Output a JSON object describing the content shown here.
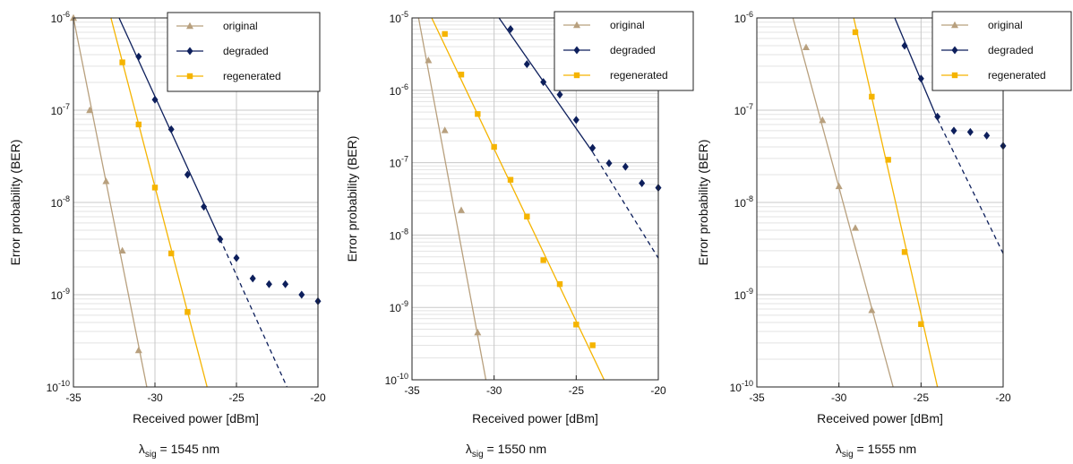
{
  "colors": {
    "original": "#b8a07e",
    "degraded": "#0d1f5c",
    "regenerated": "#f5b400",
    "grid_major": "#c8c8c8",
    "grid_minor": "#e3e3e3",
    "axis": "#222222"
  },
  "chart_data": [
    {
      "type": "line",
      "yscale": "log",
      "xlim": [
        -35,
        -20
      ],
      "ylim": [
        1e-10,
        1e-06
      ],
      "xticks": [
        -35,
        -30,
        -25,
        -20
      ],
      "xtick_labels": [
        "-35",
        "-30",
        "-25",
        "-20"
      ],
      "ydecades": [
        -10,
        -9,
        -8,
        -7,
        -6
      ],
      "xlabel": "Received power [dBm]",
      "ylabel": "Error probability (BER)",
      "caption": "λsig = 1545 nm",
      "caption_parts": {
        "symbol": "λ",
        "sub": "sig",
        "rest": " = 1545 nm"
      },
      "legend": {
        "position": "top-right",
        "entries": [
          "original",
          "degraded",
          "regenerated"
        ]
      },
      "series": [
        {
          "name": "original",
          "marker": "triangle",
          "points": [
            [
              -35,
              1e-06
            ],
            [
              -34,
              1e-07
            ],
            [
              -33,
              1.7e-08
            ],
            [
              -32,
              3e-09
            ],
            [
              -31,
              2.5e-10
            ]
          ],
          "fit": [
            [
              -35,
              1e-06
            ],
            [
              -30.5,
              1e-10
            ]
          ]
        },
        {
          "name": "degraded",
          "marker": "diamond",
          "points": [
            [
              -31,
              3.8e-07
            ],
            [
              -30,
              1.3e-07
            ],
            [
              -29,
              6.2e-08
            ],
            [
              -28,
              2e-08
            ],
            [
              -27,
              9e-09
            ],
            [
              -26,
              4e-09
            ],
            [
              -25,
              2.5e-09
            ],
            [
              -24,
              1.5e-09
            ],
            [
              -23,
              1.3e-09
            ],
            [
              -22,
              1.3e-09
            ],
            [
              -21,
              1e-09
            ],
            [
              -20,
              8.5e-10
            ]
          ],
          "fit": [
            [
              -32.2,
              1e-06
            ],
            [
              -26,
              4e-09
            ]
          ],
          "fit_dashed": [
            [
              -26,
              4e-09
            ],
            [
              -21.9,
              1e-10
            ]
          ]
        },
        {
          "name": "regenerated",
          "marker": "square",
          "points": [
            [
              -32,
              3.3e-07
            ],
            [
              -31,
              7e-08
            ],
            [
              -30,
              1.45e-08
            ],
            [
              -29,
              2.8e-09
            ],
            [
              -28,
              6.5e-10
            ]
          ],
          "fit": [
            [
              -32.7,
              1e-06
            ],
            [
              -26.8,
              1e-10
            ]
          ]
        }
      ]
    },
    {
      "type": "line",
      "yscale": "log",
      "xlim": [
        -35,
        -20
      ],
      "ylim": [
        1e-10,
        1e-05
      ],
      "xticks": [
        -35,
        -30,
        -25,
        -20
      ],
      "xtick_labels": [
        "-35",
        "-30",
        "-25",
        "-20"
      ],
      "ydecades": [
        -10,
        -9,
        -8,
        -7,
        -6,
        -5
      ],
      "xlabel": "Received power [dBm]",
      "ylabel": "Error probability (BER)",
      "caption": "λsig = 1550 nm",
      "caption_parts": {
        "symbol": "λ",
        "sub": "sig",
        "rest": " = 1550 nm"
      },
      "legend": {
        "position": "top-right",
        "entries": [
          "original",
          "degraded",
          "regenerated"
        ]
      },
      "series": [
        {
          "name": "original",
          "marker": "triangle",
          "points": [
            [
              -34,
              2.6e-06
            ],
            [
              -33,
              2.8e-07
            ],
            [
              -32,
              2.2e-08
            ],
            [
              -31,
              4.5e-10
            ]
          ],
          "fit": [
            [
              -34.6,
              1e-05
            ],
            [
              -30.5,
              1e-10
            ]
          ]
        },
        {
          "name": "degraded",
          "marker": "diamond",
          "points": [
            [
              -29,
              7e-06
            ],
            [
              -28,
              2.3e-06
            ],
            [
              -27,
              1.3e-06
            ],
            [
              -26,
              8.7e-07
            ],
            [
              -25,
              3.9e-07
            ],
            [
              -24,
              1.6e-07
            ],
            [
              -23,
              9.8e-08
            ],
            [
              -22,
              8.8e-08
            ],
            [
              -21,
              5.2e-08
            ],
            [
              -20,
              4.5e-08
            ]
          ],
          "fit": [
            [
              -29.7,
              1e-05
            ],
            [
              -24,
              1.4e-07
            ]
          ],
          "fit_dashed": [
            [
              -24,
              1.4e-07
            ],
            [
              -20,
              4.8e-09
            ]
          ]
        },
        {
          "name": "regenerated",
          "marker": "square",
          "points": [
            [
              -33,
              6e-06
            ],
            [
              -32,
              1.65e-06
            ],
            [
              -31,
              4.7e-07
            ],
            [
              -30,
              1.65e-07
            ],
            [
              -29,
              5.8e-08
            ],
            [
              -28,
              1.8e-08
            ],
            [
              -27,
              4.5e-09
            ],
            [
              -26,
              2.1e-09
            ],
            [
              -25,
              5.8e-10
            ],
            [
              -24,
              3e-10
            ]
          ],
          "fit": [
            [
              -33.8,
              1e-05
            ],
            [
              -23.3,
              1e-10
            ]
          ]
        }
      ]
    },
    {
      "type": "line",
      "yscale": "log",
      "xlim": [
        -35,
        -20
      ],
      "ylim": [
        1e-10,
        1e-06
      ],
      "xticks": [
        -35,
        -30,
        -25,
        -20
      ],
      "xtick_labels": [
        "-35",
        "-30",
        "-25",
        "-20"
      ],
      "ydecades": [
        -10,
        -9,
        -8,
        -7,
        -6
      ],
      "xlabel": "Received power [dBm]",
      "ylabel": "Error probability (BER)",
      "caption": "λsig = 1555 nm",
      "caption_parts": {
        "symbol": "λ",
        "sub": "sig",
        "rest": " = 1555 nm"
      },
      "legend": {
        "position": "top-right",
        "entries": [
          "original",
          "degraded",
          "regenerated"
        ]
      },
      "series": [
        {
          "name": "original",
          "marker": "triangle",
          "points": [
            [
              -32,
              4.8e-07
            ],
            [
              -31,
              7.8e-08
            ],
            [
              -30,
              1.5e-08
            ],
            [
              -29,
              5.3e-09
            ],
            [
              -28,
              6.8e-10
            ]
          ],
          "fit": [
            [
              -32.8,
              1e-06
            ],
            [
              -26.7,
              1e-10
            ]
          ]
        },
        {
          "name": "degraded",
          "marker": "diamond",
          "points": [
            [
              -26,
              5e-07
            ],
            [
              -25,
              2.2e-07
            ],
            [
              -24,
              8.5e-08
            ],
            [
              -23,
              6e-08
            ],
            [
              -22,
              5.8e-08
            ],
            [
              -21,
              5.3e-08
            ],
            [
              -20,
              4.1e-08
            ]
          ],
          "fit": [
            [
              -26.6,
              1e-06
            ],
            [
              -24,
              8e-08
            ]
          ],
          "fit_dashed": [
            [
              -24,
              8e-08
            ],
            [
              -20,
              2.8e-09
            ]
          ]
        },
        {
          "name": "regenerated",
          "marker": "square",
          "points": [
            [
              -29,
              7e-07
            ],
            [
              -28,
              1.4e-07
            ],
            [
              -27,
              2.9e-08
            ],
            [
              -26,
              2.9e-09
            ],
            [
              -25,
              4.8e-10
            ]
          ],
          "fit": [
            [
              -29.1,
              1e-06
            ],
            [
              -24,
              1e-10
            ]
          ]
        }
      ]
    }
  ]
}
